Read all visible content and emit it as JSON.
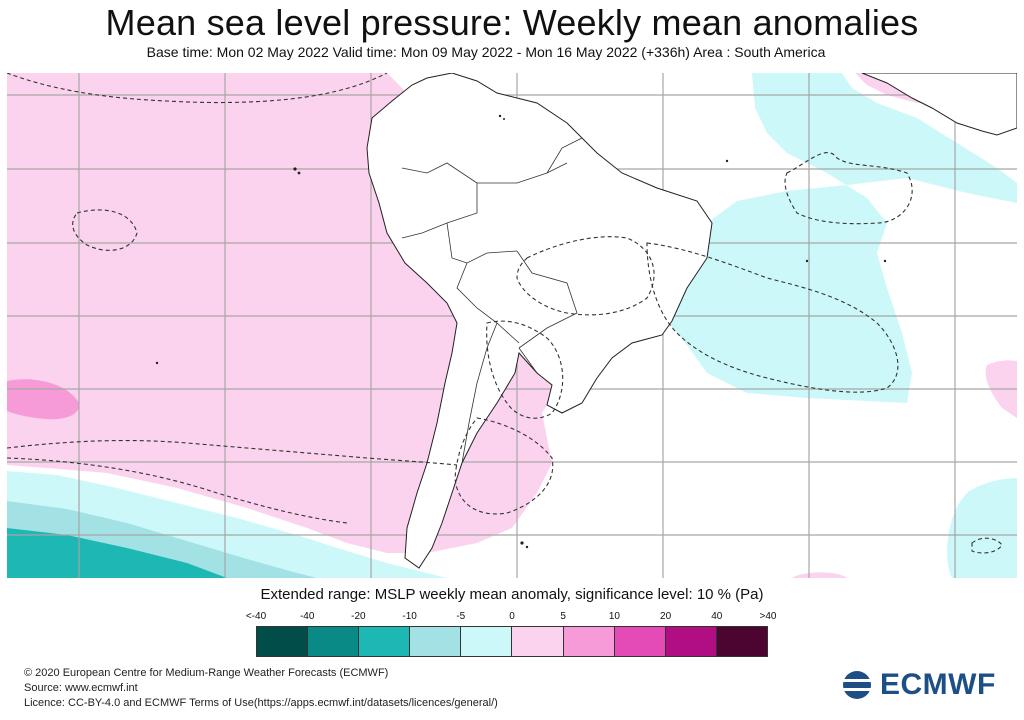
{
  "title": "Mean sea level pressure: Weekly mean anomalies",
  "subtitle": "Base time: Mon 02 May 2022 Valid time: Mon 09 May 2022 - Mon 16 May 2022 (+336h) Area : South America",
  "legend": {
    "title": "Extended range: MSLP weekly mean anomaly, significance level: 10 % (Pa)",
    "ticks": [
      "<-40",
      "-40",
      "-20",
      "-10",
      "-5",
      "0",
      "5",
      "10",
      "20",
      "40",
      ">40"
    ],
    "colors": [
      "#004d4a",
      "#0a8a86",
      "#1db7b4",
      "#a3e2e4",
      "#cdf8fa",
      "#fbd3ee",
      "#f79ad8",
      "#e44bb7",
      "#b10e84",
      "#4c0430"
    ]
  },
  "footer": {
    "copyright": "© 2020 European Centre for Medium-Range Weather Forecasts (ECMWF)",
    "source": "Source: www.ecmwf.int",
    "licence": "Licence: CC-BY-4.0 and ECMWF Terms of Use(https://apps.ecmwf.int/datasets/licences/general/)"
  },
  "logo": {
    "text": "ECMWF",
    "icon": "ecmwf-logo-icon"
  }
}
